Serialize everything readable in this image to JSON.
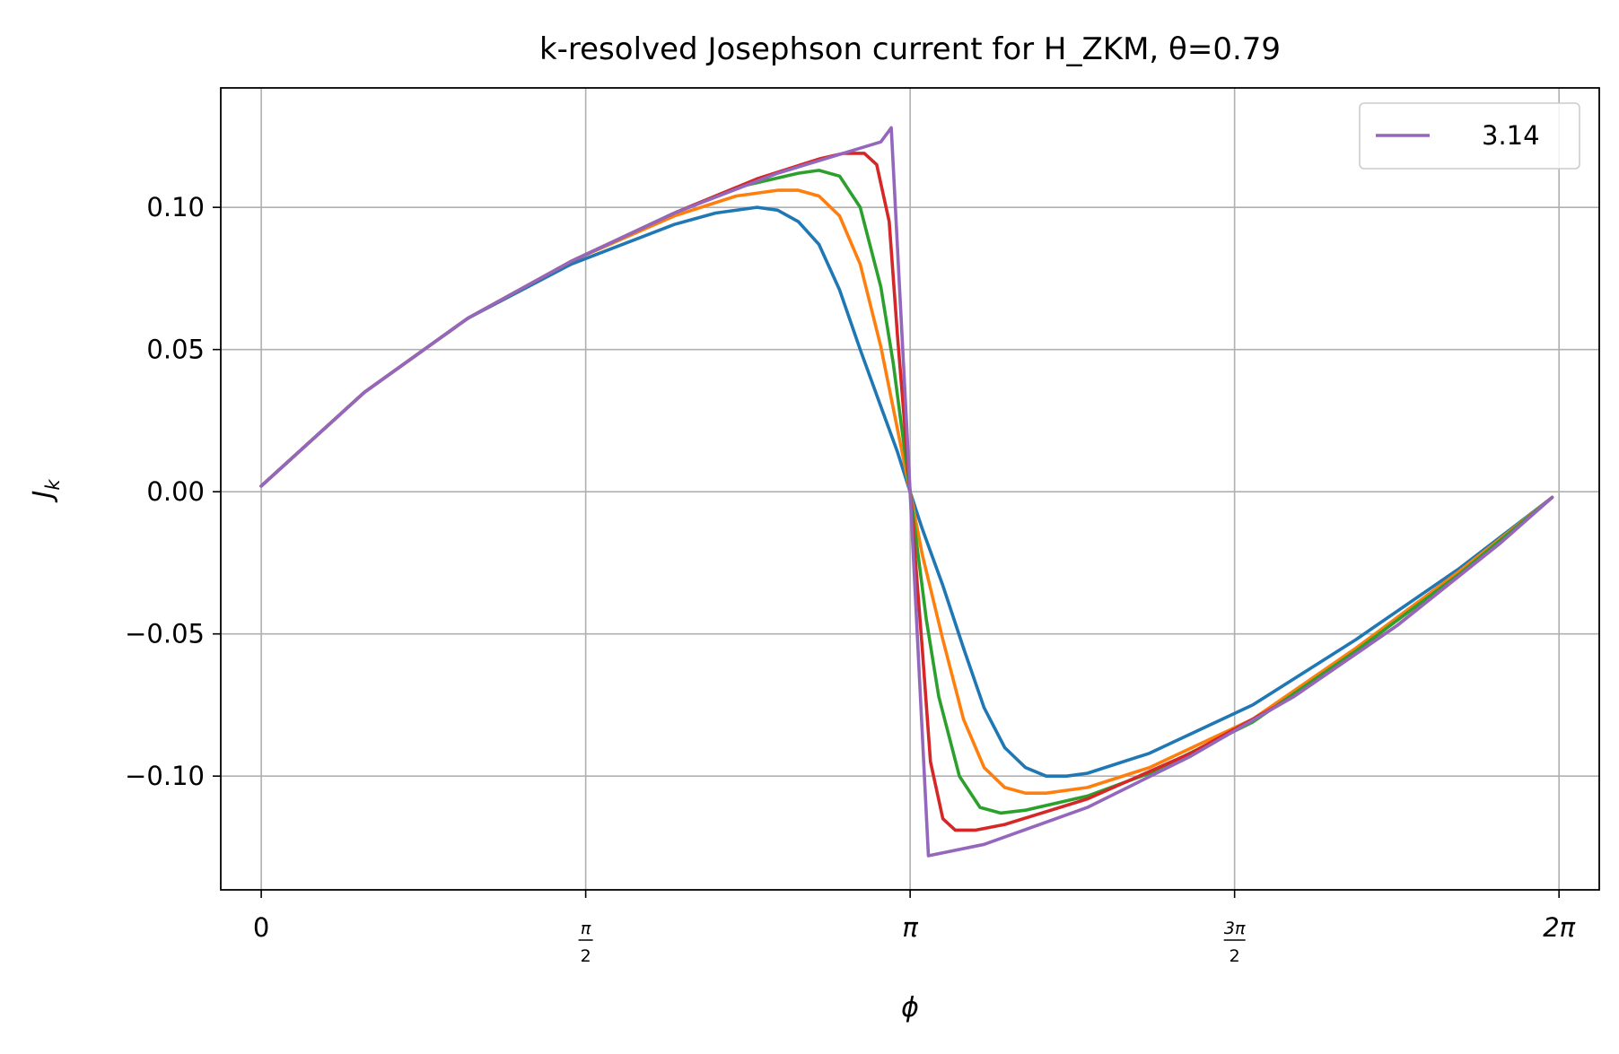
{
  "chart_data": {
    "type": "line",
    "title": "k-resolved Josephson current for H_ZKM, θ=0.79",
    "xlabel": "ϕ",
    "ylabel": "J_k",
    "xlim": [
      -0.196,
      6.478
    ],
    "ylim": [
      -0.14,
      0.142
    ],
    "grid": true,
    "legend_placement": "top-right",
    "x_ticks": [
      {
        "value": 0,
        "label": "0"
      },
      {
        "value": 1.5708,
        "label": "π/2"
      },
      {
        "value": 3.1416,
        "label": "π"
      },
      {
        "value": 4.7124,
        "label": "3π/2"
      },
      {
        "value": 6.2832,
        "label": "2π"
      }
    ],
    "y_ticks": [
      {
        "value": -0.1,
        "label": "−0.10"
      },
      {
        "value": -0.05,
        "label": "−0.05"
      },
      {
        "value": 0.0,
        "label": "0.00"
      },
      {
        "value": 0.05,
        "label": "0.05"
      },
      {
        "value": 0.1,
        "label": "0.10"
      }
    ],
    "legend": [
      {
        "label": "3.14",
        "color": "#9467bd"
      }
    ],
    "series": [
      {
        "color": "#1f77b4",
        "points": [
          [
            0.0,
            0.002
          ],
          [
            0.5,
            0.035
          ],
          [
            1.0,
            0.061
          ],
          [
            1.5,
            0.08
          ],
          [
            2.0,
            0.094
          ],
          [
            2.2,
            0.098
          ],
          [
            2.4,
            0.1
          ],
          [
            2.5,
            0.099
          ],
          [
            2.6,
            0.095
          ],
          [
            2.7,
            0.087
          ],
          [
            2.8,
            0.071
          ],
          [
            2.9,
            0.05
          ],
          [
            3.0,
            0.03
          ],
          [
            3.08,
            0.014
          ],
          [
            3.1416,
            0.0
          ],
          [
            3.2,
            -0.013
          ],
          [
            3.3,
            -0.033
          ],
          [
            3.4,
            -0.055
          ],
          [
            3.5,
            -0.076
          ],
          [
            3.6,
            -0.09
          ],
          [
            3.7,
            -0.097
          ],
          [
            3.8,
            -0.1
          ],
          [
            3.9,
            -0.1
          ],
          [
            4.0,
            -0.099
          ],
          [
            4.3,
            -0.092
          ],
          [
            4.8,
            -0.075
          ],
          [
            5.3,
            -0.052
          ],
          [
            5.8,
            -0.027
          ],
          [
            6.25,
            -0.002
          ]
        ]
      },
      {
        "color": "#ff7f0e",
        "points": [
          [
            0.0,
            0.002
          ],
          [
            0.5,
            0.035
          ],
          [
            1.0,
            0.061
          ],
          [
            1.5,
            0.081
          ],
          [
            2.0,
            0.097
          ],
          [
            2.3,
            0.104
          ],
          [
            2.5,
            0.106
          ],
          [
            2.6,
            0.106
          ],
          [
            2.7,
            0.104
          ],
          [
            2.8,
            0.097
          ],
          [
            2.9,
            0.08
          ],
          [
            3.0,
            0.051
          ],
          [
            3.08,
            0.022
          ],
          [
            3.1416,
            0.0
          ],
          [
            3.2,
            -0.022
          ],
          [
            3.3,
            -0.052
          ],
          [
            3.4,
            -0.08
          ],
          [
            3.5,
            -0.097
          ],
          [
            3.6,
            -0.104
          ],
          [
            3.7,
            -0.106
          ],
          [
            3.8,
            -0.106
          ],
          [
            4.0,
            -0.104
          ],
          [
            4.3,
            -0.097
          ],
          [
            4.8,
            -0.08
          ],
          [
            5.3,
            -0.055
          ],
          [
            5.8,
            -0.028
          ],
          [
            6.25,
            -0.002
          ]
        ]
      },
      {
        "color": "#2ca02c",
        "points": [
          [
            0.0,
            0.002
          ],
          [
            0.5,
            0.035
          ],
          [
            1.0,
            0.061
          ],
          [
            1.5,
            0.081
          ],
          [
            2.0,
            0.098
          ],
          [
            2.3,
            0.107
          ],
          [
            2.6,
            0.112
          ],
          [
            2.7,
            0.113
          ],
          [
            2.8,
            0.111
          ],
          [
            2.9,
            0.1
          ],
          [
            3.0,
            0.072
          ],
          [
            3.06,
            0.045
          ],
          [
            3.1416,
            0.0
          ],
          [
            3.22,
            -0.045
          ],
          [
            3.28,
            -0.072
          ],
          [
            3.38,
            -0.1
          ],
          [
            3.48,
            -0.111
          ],
          [
            3.58,
            -0.113
          ],
          [
            3.7,
            -0.112
          ],
          [
            4.0,
            -0.107
          ],
          [
            4.3,
            -0.099
          ],
          [
            4.8,
            -0.081
          ],
          [
            5.3,
            -0.056
          ],
          [
            5.8,
            -0.029
          ],
          [
            6.25,
            -0.002
          ]
        ]
      },
      {
        "color": "#d62728",
        "points": [
          [
            0.0,
            0.002
          ],
          [
            0.5,
            0.035
          ],
          [
            1.0,
            0.061
          ],
          [
            1.5,
            0.081
          ],
          [
            2.0,
            0.098
          ],
          [
            2.4,
            0.11
          ],
          [
            2.7,
            0.117
          ],
          [
            2.82,
            0.119
          ],
          [
            2.92,
            0.119
          ],
          [
            2.98,
            0.115
          ],
          [
            3.04,
            0.095
          ],
          [
            3.08,
            0.055
          ],
          [
            3.1416,
            0.0
          ],
          [
            3.2,
            -0.055
          ],
          [
            3.24,
            -0.095
          ],
          [
            3.3,
            -0.115
          ],
          [
            3.36,
            -0.119
          ],
          [
            3.46,
            -0.119
          ],
          [
            3.6,
            -0.117
          ],
          [
            4.0,
            -0.108
          ],
          [
            4.5,
            -0.092
          ],
          [
            5.0,
            -0.072
          ],
          [
            5.5,
            -0.047
          ],
          [
            6.0,
            -0.018
          ],
          [
            6.25,
            -0.002
          ]
        ]
      },
      {
        "color": "#9467bd",
        "name": "3.14",
        "points": [
          [
            0.0,
            0.002
          ],
          [
            0.5,
            0.035
          ],
          [
            1.0,
            0.061
          ],
          [
            1.5,
            0.081
          ],
          [
            2.0,
            0.098
          ],
          [
            2.5,
            0.112
          ],
          [
            3.0,
            0.123
          ],
          [
            3.05,
            0.128
          ],
          [
            3.1416,
            0.0
          ],
          [
            3.23,
            -0.128
          ],
          [
            3.5,
            -0.124
          ],
          [
            4.0,
            -0.111
          ],
          [
            4.5,
            -0.093
          ],
          [
            5.0,
            -0.072
          ],
          [
            5.5,
            -0.047
          ],
          [
            6.0,
            -0.018
          ],
          [
            6.25,
            -0.002
          ]
        ]
      }
    ]
  }
}
